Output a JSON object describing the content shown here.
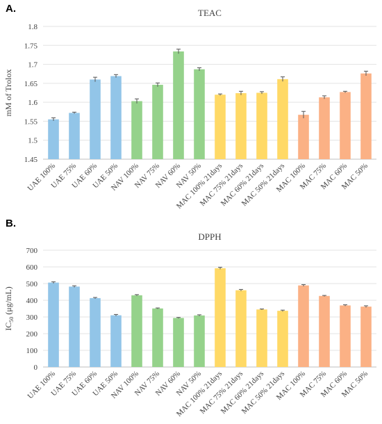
{
  "panels": [
    {
      "letter": "A."
    },
    {
      "letter": "B."
    }
  ],
  "chart_data": [
    {
      "type": "bar",
      "title": "TEAC",
      "ylabel": "mM of Trolox",
      "xlabel": "",
      "ylim": [
        1.45,
        1.8
      ],
      "yticks": [
        "1.45",
        "1.5",
        "1.55",
        "1.6",
        "1.65",
        "1.7",
        "1.75",
        "1.8"
      ],
      "grid": "horizontal",
      "error_bars": true,
      "categories": [
        "UAE 100%",
        "UAE 75%",
        "UAE 60%",
        "UAE 50%",
        "NAV 100%",
        "NAV 75%",
        "NAV 60%",
        "NAV 50%",
        "MAC 100% 21days",
        "MAC 75% 21days",
        "MAC 60% 21days",
        "MAC 50% 21days",
        "MAC 100%",
        "MAC 75%",
        "MAC 60%",
        "MAC 50%"
      ],
      "values": [
        1.555,
        1.572,
        1.66,
        1.669,
        1.603,
        1.646,
        1.734,
        1.687,
        1.62,
        1.624,
        1.625,
        1.661,
        1.567,
        1.613,
        1.627,
        1.676
      ],
      "errors": [
        0.004,
        0.002,
        0.006,
        0.004,
        0.006,
        0.005,
        0.006,
        0.004,
        0.002,
        0.005,
        0.003,
        0.006,
        0.009,
        0.004,
        0.002,
        0.006
      ],
      "colors": [
        "#92c5e8",
        "#92c5e8",
        "#92c5e8",
        "#92c5e8",
        "#95d28b",
        "#95d28b",
        "#95d28b",
        "#95d28b",
        "#ffd966",
        "#ffd966",
        "#ffd966",
        "#ffd966",
        "#fbb185",
        "#fbb185",
        "#fbb185",
        "#fbb185"
      ]
    },
    {
      "type": "bar",
      "title": "DPPH",
      "ylabel": "IC50 (μg/mL)",
      "ylabel_main": "IC",
      "ylabel_sub": "50",
      "ylabel_rest": " (μg/mL)",
      "xlabel": "",
      "ylim": [
        0,
        700
      ],
      "yticks": [
        "0",
        "100",
        "200",
        "300",
        "400",
        "500",
        "600",
        "700"
      ],
      "grid": "horizontal",
      "error_bars": true,
      "categories": [
        "UAE 100%",
        "UAE 75%",
        "UAE 60%",
        "UAE 50%",
        "NAV 100%",
        "NAV 75%",
        "NAV 60%",
        "NAV 50%",
        "MAC 100% 21days",
        "MAC 75% 21days",
        "MAC 60% 21days",
        "MAC 50% 21days",
        "MAC 100%",
        "MAC 75%",
        "MAC 60%",
        "MAC 50%"
      ],
      "values": [
        506,
        482,
        413,
        310,
        430,
        351,
        294,
        309,
        592,
        460,
        345,
        337,
        489,
        426,
        369,
        362
      ],
      "errors": [
        5,
        5,
        4,
        5,
        4,
        3,
        3,
        4,
        6,
        5,
        3,
        4,
        5,
        3,
        4,
        5
      ],
      "colors": [
        "#92c5e8",
        "#92c5e8",
        "#92c5e8",
        "#92c5e8",
        "#95d28b",
        "#95d28b",
        "#95d28b",
        "#95d28b",
        "#ffd966",
        "#ffd966",
        "#ffd966",
        "#ffd966",
        "#fbb185",
        "#fbb185",
        "#fbb185",
        "#fbb185"
      ]
    }
  ]
}
